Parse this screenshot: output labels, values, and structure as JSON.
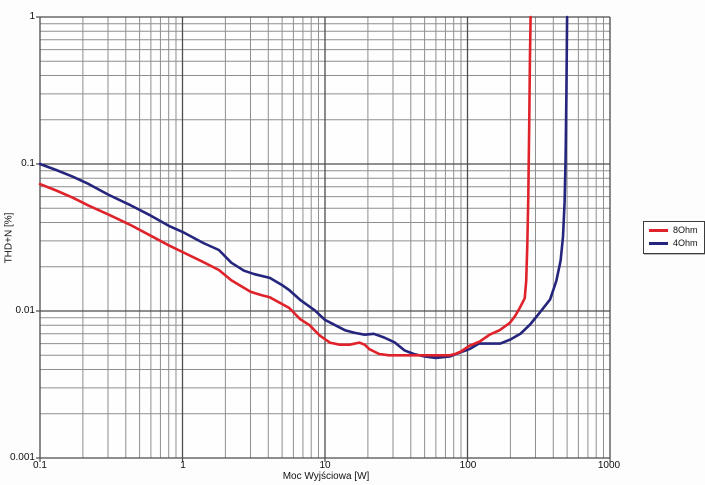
{
  "chart_data": {
    "type": "line",
    "title": "",
    "xlabel": "Moc Wyjściowa [W]",
    "ylabel": "THD+N [%]",
    "x_scale": "log",
    "y_scale": "log",
    "xlim": [
      0.1,
      1000
    ],
    "ylim": [
      0.001,
      1
    ],
    "grid": "log major + minor, both axes",
    "legend_position": "right-outside-middle",
    "x_ticks": [
      {
        "value": 0.1,
        "label": "0.1"
      },
      {
        "value": 1,
        "label": "1"
      },
      {
        "value": 10,
        "label": "10"
      },
      {
        "value": 100,
        "label": "100"
      },
      {
        "value": 1000,
        "label": "1000"
      }
    ],
    "y_ticks": [
      {
        "value": 1,
        "label": "1"
      },
      {
        "value": 0.1,
        "label": "0.1"
      },
      {
        "value": 0.01,
        "label": "0.01"
      },
      {
        "value": 0.001,
        "label": "0.001"
      }
    ],
    "colors": {
      "grid_minor": "#8e8e8e",
      "grid_major": "#4d4d4d",
      "series_8ohm": "#e0232b",
      "series_4ohm": "#25257d"
    },
    "series": [
      {
        "name": "8Ohm",
        "color": "#e0232b",
        "points": [
          [
            0.1,
            0.073
          ],
          [
            0.13,
            0.066
          ],
          [
            0.17,
            0.059
          ],
          [
            0.22,
            0.052
          ],
          [
            0.3,
            0.0455
          ],
          [
            0.43,
            0.0385
          ],
          [
            0.6,
            0.0325
          ],
          [
            0.8,
            0.028
          ],
          [
            1.0,
            0.0252
          ],
          [
            1.4,
            0.0215
          ],
          [
            1.8,
            0.019
          ],
          [
            2.2,
            0.0162
          ],
          [
            3.0,
            0.0135
          ],
          [
            3.6,
            0.0128
          ],
          [
            4.1,
            0.0124
          ],
          [
            5.6,
            0.0105
          ],
          [
            6.7,
            0.0088
          ],
          [
            7.8,
            0.008
          ],
          [
            9.2,
            0.0068
          ],
          [
            10.8,
            0.0061
          ],
          [
            12.7,
            0.0059
          ],
          [
            14.9,
            0.0059
          ],
          [
            17.4,
            0.0061
          ],
          [
            19,
            0.0059
          ],
          [
            20.5,
            0.0055
          ],
          [
            24,
            0.0051
          ],
          [
            28,
            0.005
          ],
          [
            40,
            0.005
          ],
          [
            60,
            0.005
          ],
          [
            75,
            0.005
          ],
          [
            82,
            0.0051
          ],
          [
            90,
            0.0053
          ],
          [
            103,
            0.0058
          ],
          [
            122,
            0.0062
          ],
          [
            143,
            0.0069
          ],
          [
            168,
            0.0074
          ],
          [
            198,
            0.0083
          ],
          [
            215,
            0.0092
          ],
          [
            233,
            0.0105
          ],
          [
            252,
            0.0122
          ],
          [
            258,
            0.016
          ],
          [
            263,
            0.028
          ],
          [
            267,
            0.06
          ],
          [
            271,
            0.18
          ],
          [
            274,
            0.5
          ],
          [
            277,
            1.0
          ]
        ]
      },
      {
        "name": "4Ohm",
        "color": "#25257d",
        "points": [
          [
            0.1,
            0.1
          ],
          [
            0.13,
            0.091
          ],
          [
            0.17,
            0.082
          ],
          [
            0.22,
            0.073
          ],
          [
            0.3,
            0.062
          ],
          [
            0.43,
            0.0525
          ],
          [
            0.6,
            0.0445
          ],
          [
            0.8,
            0.038
          ],
          [
            1.0,
            0.0345
          ],
          [
            1.4,
            0.029
          ],
          [
            1.8,
            0.026
          ],
          [
            2.2,
            0.0213
          ],
          [
            2.7,
            0.0188
          ],
          [
            3.2,
            0.0178
          ],
          [
            4.1,
            0.0168
          ],
          [
            5.0,
            0.015
          ],
          [
            5.6,
            0.0139
          ],
          [
            6.7,
            0.0119
          ],
          [
            8.5,
            0.0101
          ],
          [
            10,
            0.0087
          ],
          [
            11.8,
            0.008
          ],
          [
            13.8,
            0.0074
          ],
          [
            16.2,
            0.0071
          ],
          [
            19,
            0.0069
          ],
          [
            22,
            0.007
          ],
          [
            26,
            0.0066
          ],
          [
            31,
            0.0061
          ],
          [
            36,
            0.0054
          ],
          [
            42,
            0.0051
          ],
          [
            50,
            0.0049
          ],
          [
            60,
            0.0048
          ],
          [
            75,
            0.0049
          ],
          [
            88,
            0.0052
          ],
          [
            103,
            0.0055
          ],
          [
            120,
            0.006
          ],
          [
            145,
            0.006
          ],
          [
            170,
            0.006
          ],
          [
            200,
            0.0064
          ],
          [
            235,
            0.007
          ],
          [
            275,
            0.0081
          ],
          [
            320,
            0.0097
          ],
          [
            380,
            0.012
          ],
          [
            420,
            0.016
          ],
          [
            450,
            0.022
          ],
          [
            468,
            0.032
          ],
          [
            480,
            0.055
          ],
          [
            488,
            0.11
          ],
          [
            494,
            0.3
          ],
          [
            500,
            1.0
          ]
        ]
      }
    ]
  },
  "legend": {
    "items": [
      {
        "label": "8Ohm",
        "color": "#e0232b"
      },
      {
        "label": "4Ohm",
        "color": "#25257d"
      }
    ]
  }
}
